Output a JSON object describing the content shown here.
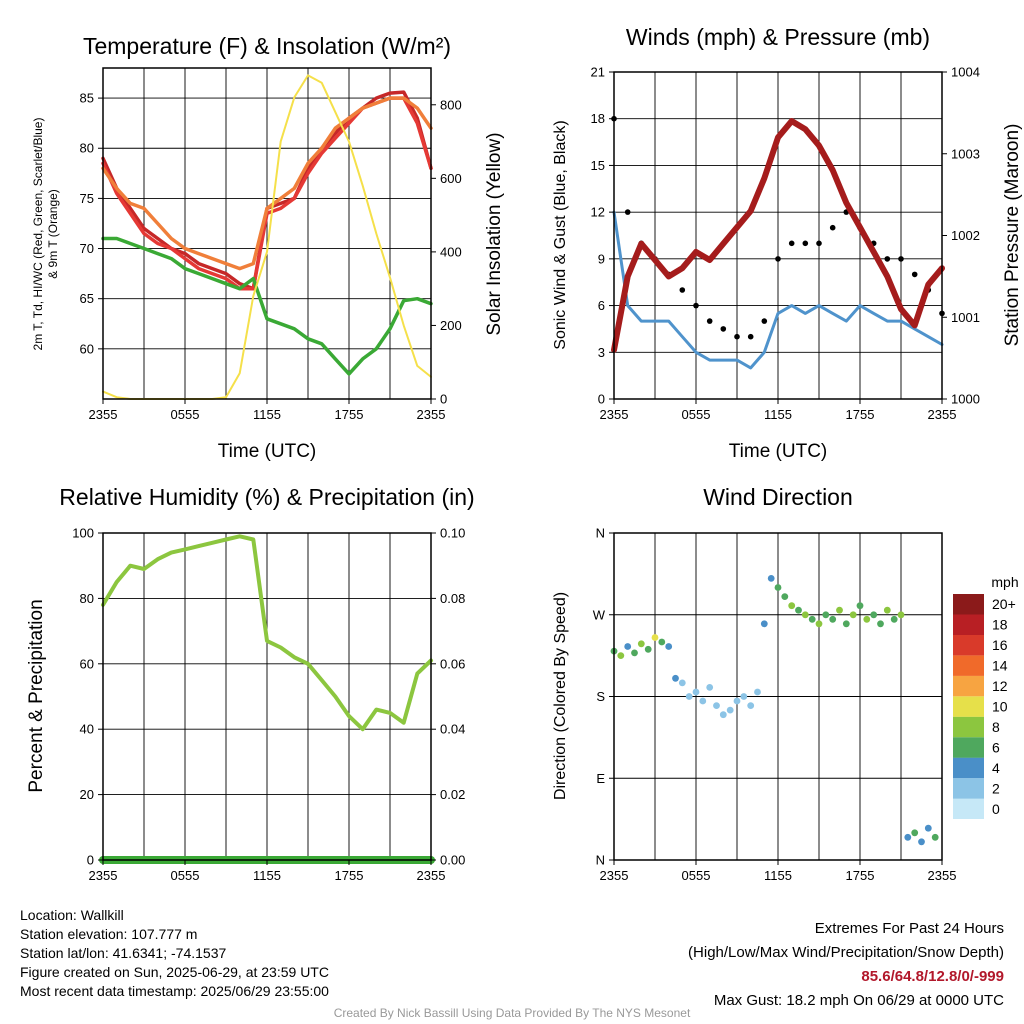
{
  "panels": {
    "temp": {
      "title": "Temperature (F) & Insolation (W/m²)",
      "ylabel_left_line1": "2m T, Td, HI/WC (Red, Green, Scarlet/Blue)",
      "ylabel_left_line2": "& 9m T (Orange)",
      "ylabel_right": "Solar Insolation (Yellow)",
      "xlabel": "Time (UTC)",
      "left_ticks": [
        "60",
        "65",
        "70",
        "75",
        "80",
        "85"
      ],
      "right_ticks": [
        "0",
        "200",
        "400",
        "600",
        "800"
      ]
    },
    "wind": {
      "title": "Winds (mph) & Pressure (mb)",
      "ylabel_left": "Sonic Wind & Gust (Blue, Black)",
      "ylabel_right": "Station Pressure (Maroon)",
      "xlabel": "Time (UTC)",
      "left_ticks": [
        "0",
        "3",
        "6",
        "9",
        "12",
        "15",
        "18",
        "21"
      ],
      "right_ticks": [
        "1000",
        "1001",
        "1002",
        "1003",
        "1004"
      ]
    },
    "rh": {
      "title": "Relative Humidity (%) & Precipitation (in)",
      "ylabel_left": "Percent & Precipitation",
      "left_ticks": [
        "0",
        "20",
        "40",
        "60",
        "80",
        "100"
      ],
      "right_ticks": [
        "0.00",
        "0.02",
        "0.04",
        "0.06",
        "0.08",
        "0.10"
      ]
    },
    "dir": {
      "title": "Wind Direction",
      "ylabel_left": "Direction (Colored By Speed)",
      "dir_ticks": [
        "N",
        "E",
        "S",
        "W",
        "N"
      ],
      "legend_title": "mph",
      "legend_labels": [
        "0",
        "2",
        "4",
        "6",
        "8",
        "10",
        "12",
        "14",
        "16",
        "18",
        "20+"
      ],
      "legend_colors": [
        "#c6e8f7",
        "#8cc4e6",
        "#4a8fc8",
        "#4fa85e",
        "#8cc63f",
        "#e6e04a",
        "#f7a441",
        "#f06a2a",
        "#d93a2a",
        "#b81f24",
        "#8b1a1a"
      ]
    }
  },
  "x_ticks": [
    "2355",
    "0555",
    "1155",
    "1755",
    "2355"
  ],
  "chart_data": [
    {
      "type": "line",
      "title": "Temperature (F) & Insolation (W/m²)",
      "xlabel": "Time (UTC)",
      "ylabel": "2m T, Td, HI/WC (Red, Green, Scarlet/Blue) & 9m T (Orange)",
      "ylabel_right": "Solar Insolation (Yellow)",
      "x": [
        0,
        1,
        2,
        3,
        4,
        5,
        6,
        7,
        8,
        9,
        10,
        11,
        12,
        13,
        14,
        15,
        16,
        17,
        18,
        19,
        20,
        21,
        22,
        23,
        24
      ],
      "ylim": [
        55,
        88
      ],
      "ylim_right": [
        0,
        900
      ],
      "series": [
        {
          "name": "2m T (Red)",
          "color": "#c62828",
          "values": [
            79,
            76,
            74,
            72,
            71,
            70,
            69.5,
            68.5,
            68,
            67.5,
            66.5,
            66,
            74,
            74.5,
            75,
            78,
            80,
            81.5,
            83,
            84,
            85,
            85.5,
            85.6,
            83,
            78
          ]
        },
        {
          "name": "HI/WC (Scarlet)",
          "color": "#e53935",
          "values": [
            78.5,
            75.5,
            73.5,
            71.5,
            70.5,
            70,
            69,
            68,
            67.5,
            67,
            66,
            66,
            73.5,
            74,
            75,
            77.5,
            79.5,
            81,
            82.5,
            84,
            84.5,
            85,
            85,
            82.5,
            78
          ]
        },
        {
          "name": "9m T (Orange)",
          "color": "#f07f3a",
          "values": [
            78,
            76,
            74.5,
            74,
            72.5,
            71,
            70,
            69.5,
            69,
            68.5,
            68,
            68.5,
            74,
            75,
            76,
            78.5,
            80,
            82,
            83,
            84,
            84.5,
            85,
            85,
            84,
            82
          ]
        },
        {
          "name": "Td (Green)",
          "color": "#3aa935",
          "values": [
            71,
            71,
            70.5,
            70,
            69.5,
            69,
            68,
            67.5,
            67,
            66.5,
            66,
            67,
            63,
            62.5,
            62,
            61,
            60.5,
            59,
            57.5,
            59,
            60,
            62,
            64.8,
            65,
            64.5
          ]
        },
        {
          "name": "Solar Insolation (Yellow)",
          "axis": "right",
          "color": "#f5e04a",
          "values": [
            20,
            5,
            0,
            0,
            0,
            0,
            0,
            0,
            0,
            5,
            70,
            280,
            400,
            700,
            820,
            880,
            860,
            780,
            700,
            580,
            450,
            330,
            200,
            90,
            60
          ]
        }
      ]
    },
    {
      "type": "line",
      "title": "Winds (mph) & Pressure (mb)",
      "xlabel": "Time (UTC)",
      "ylabel": "Sonic Wind & Gust (Blue, Black)",
      "ylabel_right": "Station Pressure (Maroon)",
      "x": [
        0,
        1,
        2,
        3,
        4,
        5,
        6,
        7,
        8,
        9,
        10,
        11,
        12,
        13,
        14,
        15,
        16,
        17,
        18,
        19,
        20,
        21,
        22,
        23,
        24
      ],
      "ylim": [
        0,
        21
      ],
      "ylim_right": [
        1000,
        1004
      ],
      "series": [
        {
          "name": "Sonic Wind (Blue)",
          "color": "#4f93cc",
          "values": [
            12,
            6,
            5,
            5,
            5,
            4,
            3,
            2.5,
            2.5,
            2.5,
            2,
            3,
            5.5,
            6,
            5.5,
            6,
            5.5,
            5,
            6,
            5.5,
            5,
            5,
            4.5,
            4,
            3.5
          ]
        },
        {
          "name": "Gust (Black)",
          "color": "#000000",
          "values": [
            18,
            12,
            10,
            9,
            8,
            7,
            6,
            5,
            4.5,
            4,
            4,
            5,
            9,
            10,
            10,
            10,
            11,
            12,
            11,
            10,
            9,
            9,
            8,
            7,
            5.5
          ]
        },
        {
          "name": "Station Pressure (Maroon)",
          "axis": "right",
          "color": "#a51c1c",
          "values": [
            1000.6,
            1001.5,
            1001.9,
            1001.7,
            1001.5,
            1001.6,
            1001.8,
            1001.7,
            1001.9,
            1002.1,
            1002.3,
            1002.7,
            1003.2,
            1003.4,
            1003.3,
            1003.1,
            1002.8,
            1002.4,
            1002.1,
            1001.8,
            1001.5,
            1001.1,
            1000.9,
            1001.4,
            1001.6
          ]
        }
      ]
    },
    {
      "type": "line",
      "title": "Relative Humidity (%) & Precipitation (in)",
      "ylabel": "Percent & Precipitation",
      "x": [
        0,
        1,
        2,
        3,
        4,
        5,
        6,
        7,
        8,
        9,
        10,
        11,
        12,
        13,
        14,
        15,
        16,
        17,
        18,
        19,
        20,
        21,
        22,
        23,
        24
      ],
      "ylim": [
        0,
        100
      ],
      "ylim_right": [
        0,
        0.1
      ],
      "series": [
        {
          "name": "Relative Humidity",
          "color": "#8cc63f",
          "values": [
            78,
            85,
            90,
            89,
            92,
            94,
            95,
            96,
            97,
            98,
            99,
            98,
            67,
            65,
            62,
            60,
            55,
            50,
            44,
            40,
            46,
            45,
            42,
            57,
            61
          ]
        },
        {
          "name": "Precipitation",
          "axis": "right",
          "color": "#3aa935",
          "values": [
            0,
            0,
            0,
            0,
            0,
            0,
            0,
            0,
            0,
            0,
            0,
            0,
            0,
            0,
            0,
            0,
            0,
            0,
            0,
            0,
            0,
            0,
            0,
            0,
            0
          ]
        }
      ]
    },
    {
      "type": "scatter",
      "title": "Wind Direction",
      "ylabel": "Direction (Colored By Speed)",
      "x": [
        0,
        0.5,
        1,
        1.5,
        2,
        2.5,
        3,
        3.5,
        4,
        4.5,
        5,
        5.5,
        6,
        6.5,
        7,
        7.5,
        8,
        8.5,
        9,
        9.5,
        10,
        10.5,
        11,
        11.5,
        12,
        12.5,
        13,
        13.5,
        14,
        14.5,
        15,
        15.5,
        16,
        16.5,
        17,
        17.5,
        18,
        18.5,
        19,
        19.5,
        20,
        20.5,
        21,
        21.5,
        22,
        22.5,
        23,
        23.5
      ],
      "series": [
        {
          "name": "Direction",
          "values": [
            230,
            225,
            235,
            228,
            238,
            232,
            245,
            240,
            235,
            200,
            195,
            180,
            185,
            175,
            190,
            170,
            160,
            165,
            175,
            180,
            170,
            185,
            260,
            310,
            300,
            290,
            280,
            275,
            270,
            265,
            260,
            270,
            265,
            275,
            260,
            270,
            280,
            265,
            270,
            260,
            275,
            265,
            270,
            25,
            30,
            20,
            35,
            25
          ]
        },
        {
          "name": "Speed",
          "values": [
            6,
            8,
            4,
            6,
            7,
            5,
            9,
            6,
            4,
            3,
            2,
            1,
            2,
            1,
            2,
            1,
            1,
            2,
            1,
            2,
            1,
            2,
            4,
            3,
            5,
            6,
            7,
            6,
            8,
            6,
            7,
            6,
            5,
            7,
            6,
            8,
            6,
            7,
            6,
            5,
            7,
            6,
            8,
            4,
            6,
            3,
            4,
            5
          ]
        }
      ]
    }
  ],
  "footer": {
    "location": "Location: Wallkill",
    "elevation": "Station elevation: 107.777 m",
    "latlon": "Station lat/lon: 41.6341; -74.1537",
    "created": "Figure created on Sun, 2025-06-29, at 23:59 UTC",
    "recent": "Most recent data timestamp: 2025/06/29 23:55:00",
    "extremes_title": "Extremes For Past 24 Hours",
    "extremes_labels": "(High/Low/Max Wind/Precipitation/Snow Depth)",
    "extremes_values": "85.6/64.8/12.8/0/-999",
    "max_gust": "Max Gust: 18.2 mph On 06/29 at 0000 UTC",
    "credit": "Created By Nick Bassill Using Data Provided By The NYS Mesonet"
  }
}
